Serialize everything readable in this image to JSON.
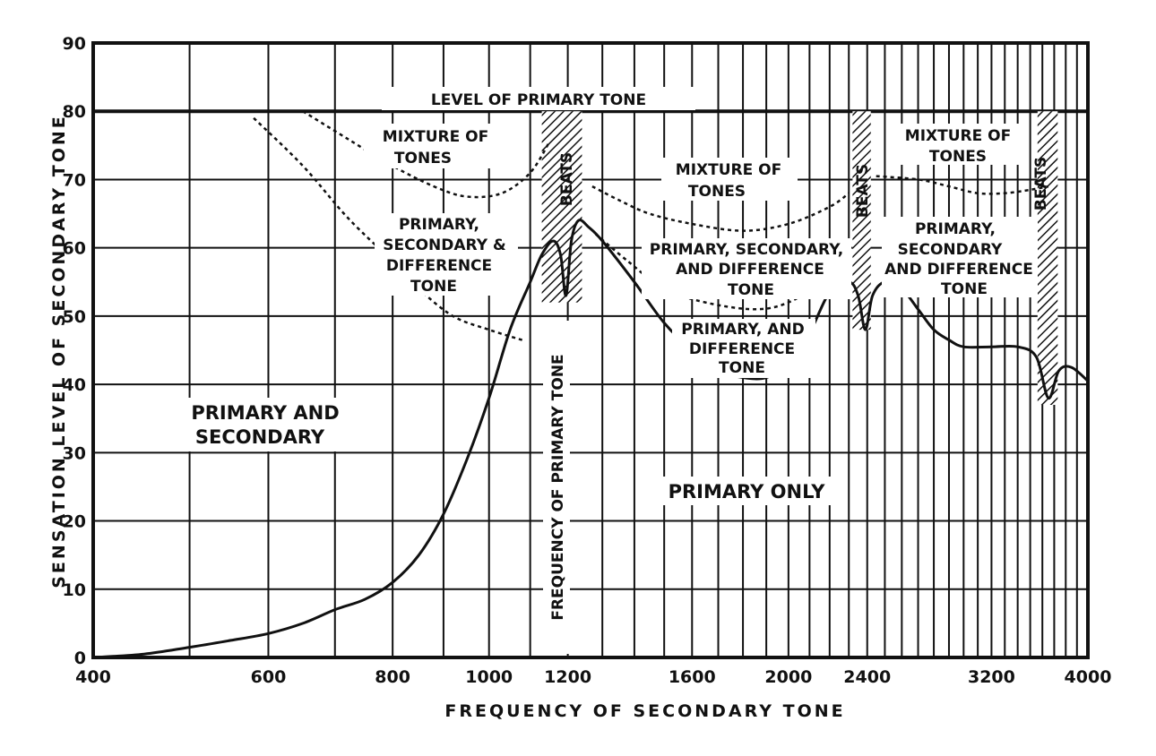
{
  "chart_data": {
    "type": "line",
    "title": "",
    "xlabel": "FREQUENCY OF SECONDARY TONE",
    "ylabel": "SENSATION LEVEL OF SECONDARY TONE",
    "ylim": [
      0,
      90
    ],
    "x_scale": "log",
    "xlim": [
      400,
      4000
    ],
    "x_ticks": [
      400,
      600,
      800,
      1000,
      1200,
      1600,
      2000,
      2400,
      3200,
      4000
    ],
    "y_ticks": [
      0,
      10,
      20,
      30,
      40,
      50,
      60,
      70,
      80,
      90
    ],
    "grid": true,
    "primary_level": 80,
    "primary_frequency": 1200,
    "series": [
      {
        "style": "solid",
        "points": [
          [
            400,
            0
          ],
          [
            450,
            0.5
          ],
          [
            500,
            1.5
          ],
          [
            550,
            2.5
          ],
          [
            600,
            3.5
          ],
          [
            650,
            5
          ],
          [
            700,
            7
          ],
          [
            750,
            8.5
          ],
          [
            800,
            11
          ],
          [
            850,
            15
          ],
          [
            900,
            21
          ],
          [
            950,
            29
          ],
          [
            1000,
            38
          ],
          [
            1050,
            48
          ],
          [
            1100,
            55
          ],
          [
            1130,
            59
          ],
          [
            1160,
            61
          ],
          [
            1180,
            59
          ],
          [
            1195,
            53
          ],
          [
            1210,
            61
          ],
          [
            1230,
            64
          ],
          [
            1260,
            63
          ],
          [
            1300,
            61
          ],
          [
            1400,
            55
          ],
          [
            1500,
            49
          ],
          [
            1600,
            45
          ],
          [
            1700,
            42
          ],
          [
            1800,
            41
          ],
          [
            1900,
            41
          ],
          [
            2000,
            43
          ],
          [
            2100,
            47.5
          ],
          [
            2200,
            53.5
          ],
          [
            2300,
            55
          ],
          [
            2350,
            53
          ],
          [
            2390,
            48
          ],
          [
            2430,
            53
          ],
          [
            2500,
            55
          ],
          [
            2600,
            54
          ],
          [
            2700,
            51
          ],
          [
            2800,
            48
          ],
          [
            2900,
            46.5
          ],
          [
            3000,
            45.5
          ],
          [
            3200,
            45.5
          ],
          [
            3400,
            45.5
          ],
          [
            3550,
            44
          ],
          [
            3650,
            38
          ],
          [
            3740,
            42
          ],
          [
            3850,
            42.5
          ],
          [
            4000,
            40.5
          ]
        ]
      },
      {
        "style": "dotted",
        "points": [
          [
            580,
            79
          ],
          [
            650,
            72
          ],
          [
            720,
            64.5
          ],
          [
            800,
            58
          ],
          [
            850,
            54
          ],
          [
            920,
            50
          ],
          [
            1000,
            48
          ],
          [
            1080,
            46.5
          ]
        ]
      },
      {
        "style": "dotted",
        "points": [
          [
            650,
            80
          ],
          [
            720,
            76
          ],
          [
            800,
            72
          ],
          [
            880,
            69
          ],
          [
            950,
            67.5
          ],
          [
            1030,
            68
          ],
          [
            1100,
            71
          ],
          [
            1150,
            75.5
          ]
        ]
      },
      {
        "style": "dotted",
        "points": [
          [
            1270,
            69
          ],
          [
            1350,
            67
          ],
          [
            1450,
            65
          ],
          [
            1600,
            63.5
          ],
          [
            1800,
            62.5
          ],
          [
            2000,
            63.5
          ],
          [
            2200,
            66
          ],
          [
            2300,
            68
          ]
        ]
      },
      {
        "style": "dotted",
        "points": [
          [
            1280,
            62
          ],
          [
            1380,
            58
          ],
          [
            1500,
            54
          ],
          [
            1650,
            52
          ],
          [
            1850,
            51
          ],
          [
            2000,
            52
          ],
          [
            2150,
            55
          ],
          [
            2250,
            59
          ]
        ]
      },
      {
        "style": "dotted",
        "points": [
          [
            2450,
            70.5
          ],
          [
            2700,
            70
          ],
          [
            2900,
            69
          ],
          [
            3100,
            68
          ],
          [
            3300,
            68
          ],
          [
            3500,
            68.5
          ],
          [
            3650,
            69
          ]
        ]
      }
    ],
    "beats_bands": [
      {
        "label": "BEATS",
        "x": [
          1130,
          1240
        ],
        "y": [
          52,
          80
        ]
      },
      {
        "label": "BEATS",
        "x": [
          2320,
          2420
        ],
        "y": [
          48,
          80
        ]
      },
      {
        "label": "BEATS",
        "x": [
          3560,
          3730
        ],
        "y": [
          37,
          80
        ]
      }
    ],
    "annotations": {
      "level_primary": "LEVEL OF PRIMARY TONE",
      "freq_primary": "FREQUENCY OF PRIMARY TONE",
      "mix1": [
        "MIXTURE OF",
        "TONES"
      ],
      "mix2": [
        "MIXTURE OF",
        "TONES"
      ],
      "mix3": [
        "MIXTURE OF",
        "TONES"
      ],
      "psd1": [
        "PRIMARY,",
        "SECONDARY &",
        "DIFFERENCE",
        "TONE"
      ],
      "psd2": [
        "PRIMARY, SECONDARY,",
        "AND DIFFERENCE",
        "TONE"
      ],
      "psd3": [
        "PRIMARY,",
        "SECONDARY",
        "AND DIFFERENCE",
        "TONE"
      ],
      "pad": [
        "PRIMARY, AND",
        "DIFFERENCE",
        "TONE"
      ],
      "pas": [
        "PRIMARY AND",
        "SECONDARY"
      ],
      "po": "PRIMARY ONLY"
    }
  }
}
